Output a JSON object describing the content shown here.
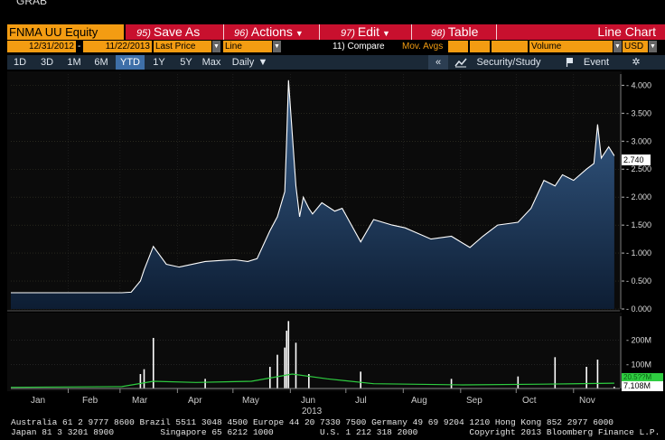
{
  "top_label": "GRAB",
  "toolbar": {
    "ticker": "FNMA UU Equity",
    "save_num": "95)",
    "save_label": "Save As",
    "actions_num": "96)",
    "actions_label": "Actions",
    "edit_num": "97)",
    "edit_label": "Edit",
    "table_num": "98)",
    "table_label": "Table",
    "chart_type": "Line Chart"
  },
  "params": {
    "start_date": "12/31/2012",
    "end_date": "11/22/2013",
    "price_field": "Last Price",
    "line_type": "Line",
    "compare": "11) Compare",
    "mov_avgs": "Mov. Avgs",
    "volume": "Volume",
    "currency": "USD"
  },
  "ranges": {
    "buttons": [
      "1D",
      "3D",
      "1M",
      "6M",
      "YTD",
      "1Y",
      "5Y",
      "Max"
    ],
    "selected": "YTD",
    "period": "Daily",
    "collapse": "«",
    "security_study": "Security/Study",
    "event": "Event"
  },
  "icons": {
    "dropdown": "chevron-down-icon",
    "study": "line-chart-icon",
    "event": "event-flag-icon",
    "settings": "gear-icon"
  },
  "colors": {
    "accent_orange": "#f39c12",
    "toolbar_red": "#c8102e",
    "line_white": "#ffffff",
    "area_top": "#3a6290",
    "area_bottom": "#0d1d33",
    "volume_bar": "#ffffff",
    "volume_avg": "#2ecc40"
  },
  "price_axis": {
    "ticks": [
      "4.000",
      "3.500",
      "3.000",
      "2.500",
      "2.000",
      "1.500",
      "1.000",
      "0.500",
      "0.000"
    ],
    "last_value": "2.740"
  },
  "volume_axis": {
    "ticks": [
      "200M",
      "100M"
    ],
    "last_volume": "7.108M",
    "avg_volume": "20.5??M"
  },
  "x_axis": {
    "months": [
      "Jan",
      "Feb",
      "Mar",
      "Apr",
      "May",
      "Jun",
      "Jul",
      "Aug",
      "Sep",
      "Oct",
      "Nov"
    ],
    "year": "2013"
  },
  "chart_data": {
    "type": "line",
    "title": "",
    "xlabel": "",
    "ylabel": "",
    "ylim": [
      0,
      4.2
    ],
    "series": [
      {
        "name": "Last Price",
        "x": [
          "2012-12-31",
          "2013-01-15",
          "2013-02-01",
          "2013-02-15",
          "2013-03-01",
          "2013-03-06",
          "2013-03-11",
          "2013-03-13",
          "2013-03-18",
          "2013-03-25",
          "2013-04-01",
          "2013-04-15",
          "2013-04-25",
          "2013-05-01",
          "2013-05-08",
          "2013-05-13",
          "2013-05-20",
          "2013-05-24",
          "2013-05-28",
          "2013-05-29",
          "2013-05-30",
          "2013-06-03",
          "2013-06-05",
          "2013-06-07",
          "2013-06-10",
          "2013-06-12",
          "2013-06-17",
          "2013-06-24",
          "2013-06-28",
          "2013-07-08",
          "2013-07-15",
          "2013-07-25",
          "2013-08-01",
          "2013-08-15",
          "2013-08-26",
          "2013-09-05",
          "2013-09-12",
          "2013-09-20",
          "2013-10-01",
          "2013-10-08",
          "2013-10-15",
          "2013-10-21",
          "2013-10-25",
          "2013-10-31",
          "2013-11-07",
          "2013-11-11",
          "2013-11-13",
          "2013-11-15",
          "2013-11-19",
          "2013-11-22"
        ],
        "y": [
          0.29,
          0.29,
          0.29,
          0.29,
          0.29,
          0.3,
          0.5,
          0.7,
          1.12,
          0.8,
          0.75,
          0.85,
          0.87,
          0.88,
          0.85,
          0.9,
          1.4,
          1.65,
          2.1,
          3.0,
          4.09,
          2.2,
          1.65,
          2.0,
          1.8,
          1.7,
          1.9,
          1.75,
          1.8,
          1.2,
          1.6,
          1.5,
          1.45,
          1.25,
          1.3,
          1.1,
          1.3,
          1.5,
          1.55,
          1.8,
          2.3,
          2.2,
          2.4,
          2.3,
          2.5,
          2.6,
          3.3,
          2.7,
          2.9,
          2.74
        ]
      }
    ],
    "volume": {
      "name": "Volume",
      "x": [
        "2013-03-11",
        "2013-03-13",
        "2013-03-18",
        "2013-04-15",
        "2013-05-20",
        "2013-05-24",
        "2013-05-28",
        "2013-05-29",
        "2013-05-30",
        "2013-06-03",
        "2013-06-10",
        "2013-07-08",
        "2013-08-26",
        "2013-10-01",
        "2013-10-21",
        "2013-11-07",
        "2013-11-13",
        "2013-11-22"
      ],
      "y": [
        60,
        80,
        210,
        40,
        90,
        140,
        170,
        240,
        280,
        190,
        60,
        70,
        40,
        50,
        130,
        90,
        120,
        7.108
      ],
      "unit": "M",
      "ticks": [
        100,
        200
      ]
    }
  },
  "footer": {
    "line1": "Australia 61 2 9777 8600 Brazil 5511 3048 4500 Europe 44 20 7330 7500 Germany 49 69 9204 1210 Hong Kong 852 2977 6000",
    "line2": "Japan 81 3 3201 8900         Singapore 65 6212 1000         U.S. 1 212 318 2000          Copyright 2013 Bloomberg Finance L.P."
  }
}
